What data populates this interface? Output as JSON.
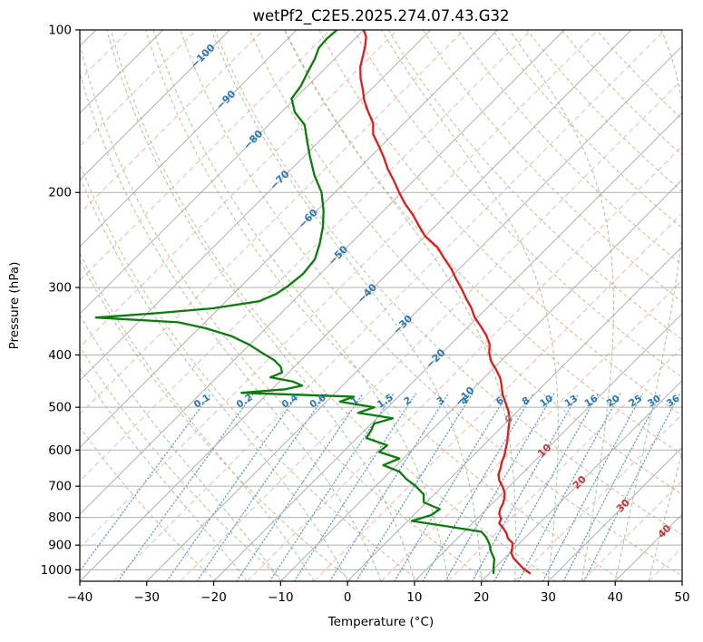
{
  "chart_data": {
    "type": "line",
    "chart_kind": "skew-t-log-p",
    "title": "wetPf2_C2E5.2025.274.07.43.G32",
    "xlabel": "Temperature (°C)",
    "ylabel": "Pressure (hPa)",
    "x_ticks": [
      -40,
      -30,
      -20,
      -10,
      0,
      10,
      20,
      30,
      40,
      50
    ],
    "pressure_ticks": [
      100,
      200,
      300,
      400,
      500,
      600,
      700,
      800,
      900,
      1000
    ],
    "t_range": [
      -40,
      50
    ],
    "p_range": [
      100,
      1050
    ],
    "grid": true,
    "legend": "none",
    "isotherm_major_step": 10,
    "isotherm_minor_step": 5,
    "isotherm_label_points": [
      [
        -100,
        112
      ],
      [
        -90,
        135
      ],
      [
        -80,
        160
      ],
      [
        -70,
        190
      ],
      [
        -60,
        224
      ],
      [
        -50,
        262
      ],
      [
        -40,
        308
      ],
      [
        -30,
        352
      ],
      [
        -20,
        407
      ],
      [
        -10,
        478
      ],
      [
        0,
        527
      ],
      [
        10,
        602
      ],
      [
        20,
        690
      ],
      [
        30,
        762
      ],
      [
        40,
        850
      ]
    ],
    "mixing_ratio_values": [
      0.1,
      0.2,
      0.4,
      0.6,
      1,
      1.5,
      2,
      3,
      4,
      6,
      8,
      10,
      13,
      16,
      20,
      25,
      30,
      36
    ],
    "mixing_ratio_label_pressure": 492,
    "mixing_ratio_top_pressure": 472,
    "dry_adiabats_theta_K": {
      "start": 250,
      "end": 440,
      "step": 10
    },
    "moist_adiabats_start_C": {
      "start": -15,
      "end": 60,
      "step": 5
    },
    "colors": {
      "grid": "#b0b0b0",
      "isotherm_major": "#b0b0b0",
      "isotherm_minor": "#f0a8a0",
      "dry_adiabat": "#c6ae84",
      "moist_adiabat": "#96c493",
      "mixing_line": "#5b9bc9",
      "label_cold": "#2878b8",
      "label_warm": "#cc3333",
      "label_zero": "#888888",
      "temperature": "#e01b1b",
      "dewpoint": "#0a7e0a"
    },
    "series": [
      {
        "name": "temperature",
        "color": "#e01b1b",
        "points": [
          [
            1014,
            26.0
          ],
          [
            995,
            24.4
          ],
          [
            975,
            23.0
          ],
          [
            952,
            21.4
          ],
          [
            930,
            20.2
          ],
          [
            910,
            19.6
          ],
          [
            893,
            19.0
          ],
          [
            875,
            17.6
          ],
          [
            856,
            16.6
          ],
          [
            838,
            15.4
          ],
          [
            820,
            14.0
          ],
          [
            804,
            13.6
          ],
          [
            788,
            12.6
          ],
          [
            771,
            12.0
          ],
          [
            753,
            11.6
          ],
          [
            736,
            11.0
          ],
          [
            719,
            10.2
          ],
          [
            701,
            9.0
          ],
          [
            683,
            7.6
          ],
          [
            666,
            6.6
          ],
          [
            649,
            6.0
          ],
          [
            631,
            5.2
          ],
          [
            613,
            4.6
          ],
          [
            596,
            3.8
          ],
          [
            579,
            3.0
          ],
          [
            561,
            2.0
          ],
          [
            543,
            1.0
          ],
          [
            526,
            0.0
          ],
          [
            508,
            -1.4
          ],
          [
            491,
            -3.0
          ],
          [
            473,
            -4.8
          ],
          [
            456,
            -6.2
          ],
          [
            441,
            -7.6
          ],
          [
            426,
            -9.4
          ],
          [
            411,
            -11.4
          ],
          [
            396,
            -13.0
          ],
          [
            382,
            -14.2
          ],
          [
            368,
            -16.0
          ],
          [
            354,
            -18.2
          ],
          [
            341,
            -20.4
          ],
          [
            327,
            -22.4
          ],
          [
            314,
            -24.6
          ],
          [
            301,
            -26.8
          ],
          [
            289,
            -29.0
          ],
          [
            277,
            -31.2
          ],
          [
            265,
            -33.8
          ],
          [
            253,
            -36.4
          ],
          [
            241,
            -40.0
          ],
          [
            230,
            -42.6
          ],
          [
            220,
            -45.0
          ],
          [
            210,
            -47.8
          ],
          [
            200,
            -50.4
          ],
          [
            190,
            -53.0
          ],
          [
            181,
            -55.6
          ],
          [
            172,
            -58.0
          ],
          [
            164,
            -60.4
          ],
          [
            156,
            -63.0
          ],
          [
            149,
            -64.6
          ],
          [
            142,
            -67.0
          ],
          [
            135,
            -69.4
          ],
          [
            129,
            -71.2
          ],
          [
            123,
            -73.2
          ],
          [
            117,
            -75.0
          ],
          [
            111,
            -76.4
          ],
          [
            107,
            -77.4
          ],
          [
            103,
            -78.6
          ],
          [
            100,
            -80.0
          ]
        ]
      },
      {
        "name": "dewpoint",
        "color": "#0a7e0a",
        "points": [
          [
            1014,
            20.6
          ],
          [
            985,
            19.6
          ],
          [
            955,
            18.6
          ],
          [
            925,
            17.0
          ],
          [
            895,
            15.6
          ],
          [
            868,
            14.0
          ],
          [
            850,
            12.6
          ],
          [
            832,
            7.0
          ],
          [
            812,
            0.6
          ],
          [
            792,
            2.6
          ],
          [
            772,
            3.0
          ],
          [
            750,
            -0.4
          ],
          [
            725,
            -1.6
          ],
          [
            700,
            -4.0
          ],
          [
            678,
            -6.6
          ],
          [
            658,
            -8.6
          ],
          [
            640,
            -12.0
          ],
          [
            622,
            -10.6
          ],
          [
            605,
            -14.6
          ],
          [
            588,
            -14.4
          ],
          [
            570,
            -18.6
          ],
          [
            552,
            -19.0
          ],
          [
            536,
            -19.6
          ],
          [
            524,
            -17.6
          ],
          [
            512,
            -23.6
          ],
          [
            500,
            -22.0
          ],
          [
            488,
            -28.0
          ],
          [
            478,
            -26.6
          ],
          [
            470,
            -44.0
          ],
          [
            463,
            -38.0
          ],
          [
            456,
            -36.0
          ],
          [
            448,
            -38.0
          ],
          [
            440,
            -42.0
          ],
          [
            431,
            -41.0
          ],
          [
            421,
            -42.0
          ],
          [
            409,
            -44.0
          ],
          [
            396,
            -47.0
          ],
          [
            383,
            -50.0
          ],
          [
            369,
            -54.0
          ],
          [
            357,
            -59.0
          ],
          [
            348,
            -64.0
          ],
          [
            341,
            -77.0
          ],
          [
            335,
            -69.0
          ],
          [
            328,
            -61.0
          ],
          [
            318,
            -55.0
          ],
          [
            308,
            -53.6
          ],
          [
            298,
            -53.0
          ],
          [
            283,
            -52.6
          ],
          [
            266,
            -53.0
          ],
          [
            249,
            -54.6
          ],
          [
            232,
            -56.6
          ],
          [
            216,
            -59.0
          ],
          [
            200,
            -62.0
          ],
          [
            186,
            -65.6
          ],
          [
            172,
            -69.0
          ],
          [
            160,
            -72.0
          ],
          [
            150,
            -74.6
          ],
          [
            142,
            -78.0
          ],
          [
            134,
            -80.5
          ],
          [
            127,
            -81.0
          ],
          [
            120,
            -82.0
          ],
          [
            113,
            -83.0
          ],
          [
            108,
            -84.0
          ],
          [
            104,
            -84.2
          ],
          [
            100,
            -84.0
          ]
        ]
      }
    ]
  }
}
